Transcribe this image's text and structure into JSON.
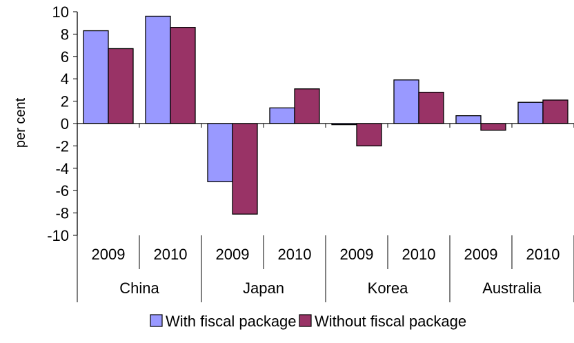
{
  "chart_data": {
    "type": "bar",
    "title": "",
    "ylabel": "per cent",
    "xlabel": "",
    "ylim": [
      -10,
      10
    ],
    "yticks": [
      -10,
      -8,
      -6,
      -4,
      -2,
      0,
      2,
      4,
      6,
      8,
      10
    ],
    "groups": [
      {
        "name": "China",
        "years": [
          "2009",
          "2010"
        ]
      },
      {
        "name": "Japan",
        "years": [
          "2009",
          "2010"
        ]
      },
      {
        "name": "Korea",
        "years": [
          "2009",
          "2010"
        ]
      },
      {
        "name": "Australia",
        "years": [
          "2009",
          "2010"
        ]
      }
    ],
    "categories": [
      "China 2009",
      "China 2010",
      "Japan 2009",
      "Japan 2010",
      "Korea 2009",
      "Korea 2010",
      "Australia 2009",
      "Australia 2010"
    ],
    "series": [
      {
        "name": "With fiscal package",
        "color": "#9999ff",
        "values": [
          8.3,
          9.6,
          -5.2,
          1.4,
          -0.1,
          3.9,
          0.7,
          1.9
        ]
      },
      {
        "name": "Without fiscal package",
        "color": "#993366",
        "values": [
          6.7,
          8.6,
          -8.1,
          3.1,
          -2.0,
          2.8,
          -0.6,
          2.1
        ]
      }
    ],
    "grid": false,
    "legend_position": "bottom"
  }
}
